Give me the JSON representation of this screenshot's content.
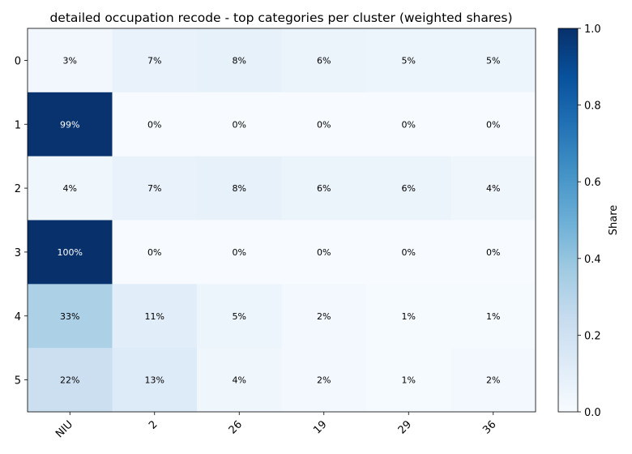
{
  "chart_data": {
    "type": "heatmap",
    "title": "detailed occupation recode - top categories per cluster (weighted shares)",
    "x_categories": [
      "NIU",
      "2",
      "26",
      "19",
      "29",
      "36"
    ],
    "y_categories": [
      "0",
      "1",
      "2",
      "3",
      "4",
      "5"
    ],
    "values": [
      [
        0.03,
        0.07,
        0.08,
        0.06,
        0.05,
        0.05
      ],
      [
        0.99,
        0.0,
        0.0,
        0.0,
        0.0,
        0.0
      ],
      [
        0.04,
        0.07,
        0.08,
        0.06,
        0.06,
        0.04
      ],
      [
        1.0,
        0.0,
        0.0,
        0.0,
        0.0,
        0.0
      ],
      [
        0.33,
        0.11,
        0.05,
        0.02,
        0.01,
        0.01
      ],
      [
        0.22,
        0.13,
        0.04,
        0.02,
        0.01,
        0.02
      ]
    ],
    "cell_labels": [
      [
        "3%",
        "7%",
        "8%",
        "6%",
        "5%",
        "5%"
      ],
      [
        "99%",
        "0%",
        "0%",
        "0%",
        "0%",
        "0%"
      ],
      [
        "4%",
        "7%",
        "8%",
        "6%",
        "6%",
        "4%"
      ],
      [
        "100%",
        "0%",
        "0%",
        "0%",
        "0%",
        "0%"
      ],
      [
        "33%",
        "11%",
        "5%",
        "2%",
        "1%",
        "1%"
      ],
      [
        "22%",
        "13%",
        "4%",
        "2%",
        "1%",
        "2%"
      ]
    ],
    "colormap": "Blues",
    "vmin": 0.0,
    "vmax": 1.0,
    "colorbar": {
      "label": "Share",
      "ticks": [
        "0.0",
        "0.2",
        "0.4",
        "0.6",
        "0.8",
        "1.0"
      ],
      "tick_values": [
        0.0,
        0.2,
        0.4,
        0.6,
        0.8,
        1.0
      ]
    },
    "xlabel": "",
    "ylabel": ""
  }
}
